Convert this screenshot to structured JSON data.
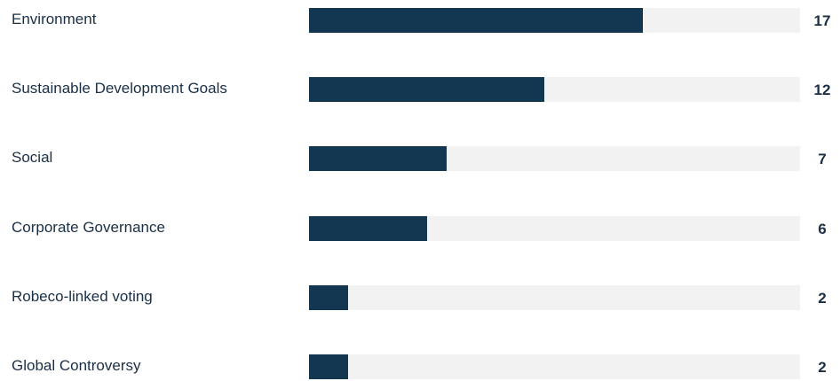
{
  "chart_data": {
    "type": "bar",
    "orientation": "horizontal",
    "categories": [
      "Environment",
      "Sustainable Development Goals",
      "Social",
      "Corporate Governance",
      "Robeco-linked voting",
      "Global Controversy"
    ],
    "values": [
      17,
      12,
      7,
      6,
      2,
      2
    ],
    "xlim": [
      0,
      25
    ],
    "title": "",
    "xlabel": "",
    "ylabel": "",
    "grid": false,
    "legend": "none",
    "value_labels": "right"
  },
  "colors": {
    "bar": "#133750",
    "track": "#f2f2f2",
    "text": "#1a2f45"
  }
}
